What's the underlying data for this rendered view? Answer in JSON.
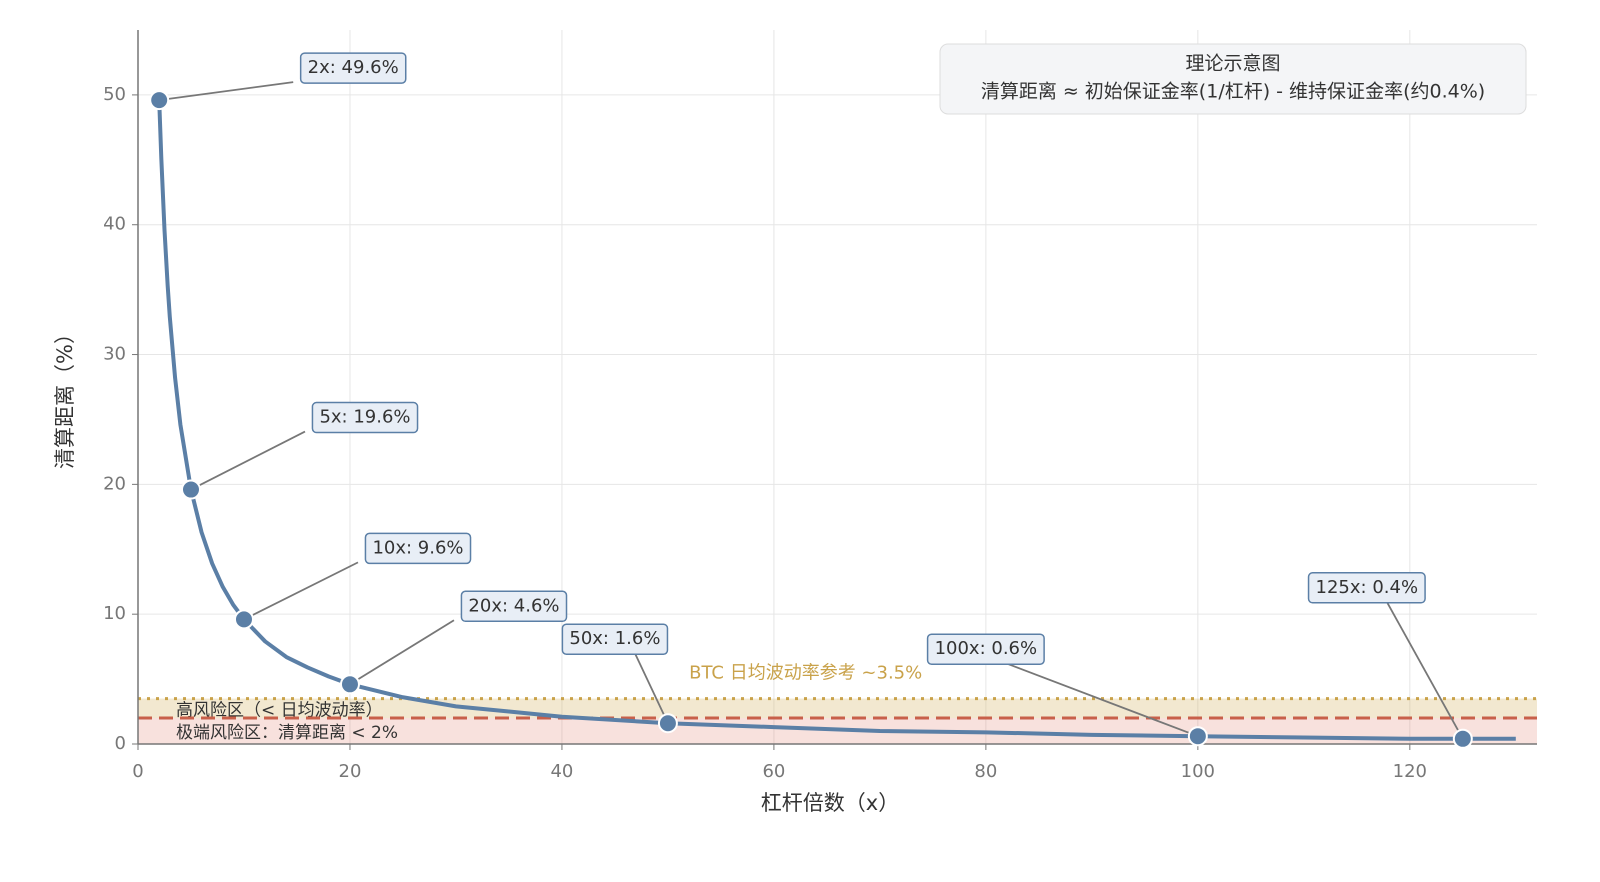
{
  "chart_data": {
    "type": "line",
    "x_label": "杠杆倍数（x）",
    "y_label": "清算距离（%）",
    "xlim": [
      0,
      132
    ],
    "ylim": [
      0,
      55
    ],
    "xticks": [
      0,
      20,
      40,
      60,
      80,
      100,
      120
    ],
    "yticks": [
      0,
      10,
      20,
      30,
      40,
      50
    ],
    "grid": true,
    "line": {
      "color": "#5b7fa6",
      "x": [
        2,
        2.2,
        2.5,
        2.8,
        3,
        3.5,
        4,
        5,
        6,
        7,
        8,
        9,
        10,
        12,
        14,
        16,
        18,
        20,
        25,
        30,
        35,
        40,
        50,
        60,
        70,
        80,
        90,
        100,
        110,
        120,
        125,
        130
      ],
      "values": [
        49.6,
        45.1,
        39.6,
        35.3,
        32.9,
        28.2,
        24.6,
        19.6,
        16.3,
        13.9,
        12.1,
        10.7,
        9.6,
        7.9,
        6.7,
        5.9,
        5.2,
        4.6,
        3.6,
        2.9,
        2.5,
        2.1,
        1.6,
        1.3,
        1.0,
        0.9,
        0.7,
        0.6,
        0.5,
        0.4,
        0.4,
        0.4
      ]
    },
    "points": {
      "x": [
        2,
        5,
        10,
        20,
        50,
        100,
        125
      ],
      "values": [
        49.6,
        19.6,
        9.6,
        4.6,
        1.6,
        0.6,
        0.4
      ],
      "value_labels": [
        "2x: 49.6%",
        "5x: 19.6%",
        "10x: 9.6%",
        "20x: 4.6%",
        "50x: 1.6%",
        "100x: 0.6%",
        "125x: 0.4%"
      ]
    },
    "bands": [
      {
        "from": 0,
        "to": 2,
        "color": "rgba(222,120,100,0.22)",
        "label": "极端风险区：清算距离 < 2%"
      },
      {
        "from": 2,
        "to": 3.5,
        "color": "rgba(214,184,110,0.32)",
        "label": "高风险区（< 日均波动率）"
      }
    ],
    "reference_lines": [
      {
        "value": 2,
        "color": "#c8604a",
        "style": "dashed"
      },
      {
        "value": 3.5,
        "color": "#c9a24a",
        "style": "dotted",
        "label": "BTC 日均波动率参考 ~3.5%"
      }
    ],
    "info_box": {
      "title": "理论示意图",
      "text": "清算距离 ≈ 初始保证金率(1/杠杆) - 维持保证金率(约0.4%)"
    }
  }
}
